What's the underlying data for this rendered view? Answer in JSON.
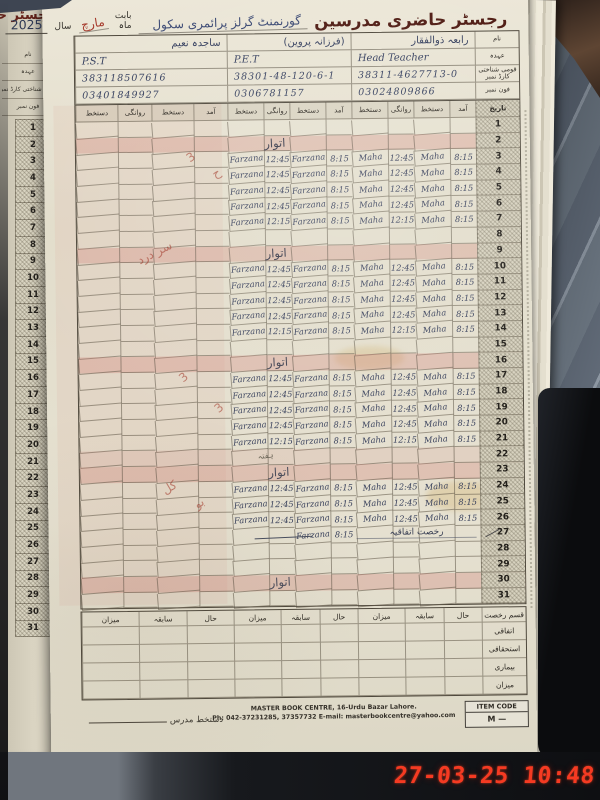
{
  "photo": {
    "camera_timestamp": "27-03-25 10:48"
  },
  "header": {
    "title": "رجسٹر حاضری مدرسین",
    "school_name": "گورنمنٹ گرلز پرائمری سکول",
    "month_label": "بابت ماہ",
    "month_value": "مارچ",
    "year_label": "سال",
    "year_value": "2025"
  },
  "info": {
    "row_labels": [
      "نام",
      "عہدہ",
      "قومی شناختی کارڈ نمبر",
      "فون نمبر"
    ],
    "teachers": [
      {
        "name": "رابعہ ذوالفقار",
        "designation": "Head Teacher",
        "cnic": "38311-4627713-0",
        "phone": "03024809866"
      },
      {
        "name": "(فرزانہ پروین)",
        "designation": "P.E.T",
        "cnic": "38301-48-120-6-1",
        "phone": "0306781157"
      },
      {
        "name": "ساجدہ نعیم",
        "designation": "P.S.T",
        "cnic": "383118507616",
        "phone": "03401849927"
      }
    ]
  },
  "attendance": {
    "date_header": "تاریخ",
    "column_headers": [
      "آمد",
      "دستخط",
      "روانگی",
      "دستخط"
    ],
    "days": [
      {
        "day": 1
      },
      {
        "day": 2,
        "label": "اتوار"
      },
      {
        "day": 3,
        "t1": [
          "8:15",
          "Maha",
          "12:45",
          "Maha"
        ],
        "t2": [
          "8:15",
          "Farzana",
          "12:45",
          "Farzana"
        ]
      },
      {
        "day": 4,
        "t1": [
          "8:15",
          "Maha",
          "12:45",
          "Maha"
        ],
        "t2": [
          "8:15",
          "Farzana",
          "12:45",
          "Farzana"
        ]
      },
      {
        "day": 5,
        "t1": [
          "8:15",
          "Maha",
          "12:45",
          "Maha"
        ],
        "t2": [
          "8:15",
          "Farzana",
          "12:45",
          "Farzana"
        ]
      },
      {
        "day": 6,
        "t1": [
          "8:15",
          "Maha",
          "12:45",
          "Maha"
        ],
        "t2": [
          "8:15",
          "Farzana",
          "12:45",
          "Farzana"
        ]
      },
      {
        "day": 7,
        "t1": [
          "8:15",
          "Maha",
          "12:15",
          "Maha"
        ],
        "t2": [
          "8:15",
          "Farzana",
          "12:15",
          "Farzana"
        ]
      },
      {
        "day": 8
      },
      {
        "day": 9,
        "label": "اتوار"
      },
      {
        "day": 10,
        "t1": [
          "8:15",
          "Maha",
          "12:45",
          "Maha"
        ],
        "t2": [
          "8:15",
          "Farzana",
          "12:45",
          "Farzana"
        ]
      },
      {
        "day": 11,
        "t1": [
          "8:15",
          "Maha",
          "12:45",
          "Maha"
        ],
        "t2": [
          "8:15",
          "Farzana",
          "12:45",
          "Farzana"
        ]
      },
      {
        "day": 12,
        "t1": [
          "8:15",
          "Maha",
          "12:45",
          "Maha"
        ],
        "t2": [
          "8:15",
          "Farzana",
          "12:45",
          "Farzana"
        ]
      },
      {
        "day": 13,
        "t1": [
          "8:15",
          "Maha",
          "12:45",
          "Maha"
        ],
        "t2": [
          "8:15",
          "Farzana",
          "12:45",
          "Farzana"
        ]
      },
      {
        "day": 14,
        "t1": [
          "8:15",
          "Maha",
          "12:15",
          "Maha"
        ],
        "t2": [
          "8:15",
          "Farzana",
          "12:15",
          "Farzana"
        ]
      },
      {
        "day": 15
      },
      {
        "day": 16,
        "label": "اتوار"
      },
      {
        "day": 17,
        "t1": [
          "8:15",
          "Maha",
          "12:45",
          "Maha"
        ],
        "t2": [
          "8:15",
          "Farzana",
          "12:45",
          "Farzana"
        ]
      },
      {
        "day": 18,
        "t1": [
          "8:15",
          "Maha",
          "12:45",
          "Maha"
        ],
        "t2": [
          "8:15",
          "Farzana",
          "12:45",
          "Farzana"
        ]
      },
      {
        "day": 19,
        "t1": [
          "8:15",
          "Maha",
          "12:45",
          "Maha"
        ],
        "t2": [
          "8:15",
          "Farzana",
          "12:45",
          "Farzana"
        ]
      },
      {
        "day": 20,
        "t1": [
          "8:15",
          "Maha",
          "12:45",
          "Maha"
        ],
        "t2": [
          "8:15",
          "Farzana",
          "12:45",
          "Farzana"
        ]
      },
      {
        "day": 21,
        "t1": [
          "8:15",
          "Maha",
          "12:15",
          "Maha"
        ],
        "t2": [
          "8:15",
          "Farzana",
          "12:15",
          "Farzana"
        ]
      },
      {
        "day": 22,
        "small_note": "ہفتہ"
      },
      {
        "day": 23,
        "label": "اتوار"
      },
      {
        "day": 24,
        "t1": [
          "8:15",
          "Maha",
          "12:45",
          "Maha"
        ],
        "t2": [
          "8:15",
          "Farzana",
          "12:45",
          "Farzana"
        ]
      },
      {
        "day": 25,
        "t1": [
          "8:15",
          "Maha",
          "12:45",
          "Maha"
        ],
        "t2": [
          "8:15",
          "Farzana",
          "12:45",
          "Farzana"
        ]
      },
      {
        "day": 26,
        "t1": [
          "8:15",
          "Maha",
          "12:45",
          "Maha"
        ],
        "t2": [
          "8:15",
          "Farzana",
          "12:45",
          "Farzana"
        ]
      },
      {
        "day": 27,
        "t2": [
          "8:15",
          "Farzana",
          "",
          ""
        ],
        "t1_note": "رخصت اتفاقیہ"
      },
      {
        "day": 28
      },
      {
        "day": 29
      },
      {
        "day": 30,
        "label": "اتوار"
      },
      {
        "day": 31
      }
    ],
    "red_notes": [
      {
        "day": 3,
        "text": "3"
      },
      {
        "day": 4,
        "text": "ح"
      },
      {
        "day": 9,
        "text": "سر درد"
      },
      {
        "day": 17,
        "text": "3"
      },
      {
        "day": 19,
        "text": "3"
      },
      {
        "day": 24,
        "text": "کل"
      },
      {
        "day": 25,
        "text": "بو"
      }
    ]
  },
  "summary": {
    "type_label": "قسم رخصت",
    "column_headers": [
      "حال",
      "سابقہ",
      "میزان"
    ],
    "row_labels": [
      "اتفاقی",
      "استحقاقی",
      "بیماری",
      "میزان"
    ]
  },
  "footer": {
    "teacher_sign_label": "دستخط مدرس",
    "press_line1": "MASTER BOOK CENTRE, 16-Urdu Bazar Lahore.",
    "press_line2": "Ph: 042-37231285, 37357732 E-mail: masterbookcentre@yahoo.com",
    "item_code_label": "ITEM CODE",
    "item_code_value": "M —"
  },
  "left_page": {
    "title_fragment": "رجسٹر حاضری"
  }
}
